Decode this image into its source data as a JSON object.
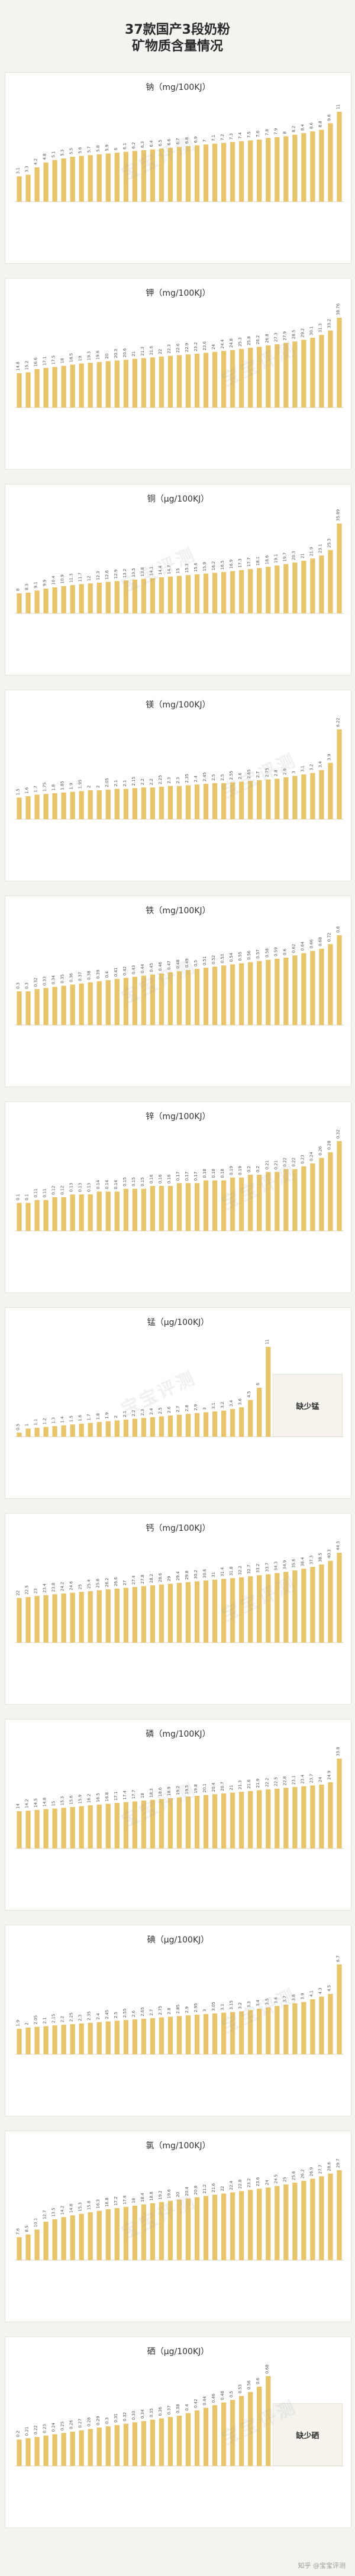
{
  "title_line1": "37款国产3段奶粉",
  "title_line2": "矿物质含量情况",
  "bar_color": "#e8c46a",
  "watermark_text": "宝宝评测",
  "footer_text": "知乎 @宝宝评测",
  "chart_data": [
    {
      "type": "bar",
      "title": "钠（mg/100KJ）",
      "values": [
        3.1,
        3.3,
        4.2,
        4.8,
        5.1,
        5.3,
        5.5,
        5.6,
        5.7,
        5.8,
        5.9,
        6,
        6.1,
        6.2,
        6.3,
        6.4,
        6.5,
        6.6,
        6.7,
        6.8,
        6.9,
        7,
        7.1,
        7.2,
        7.3,
        7.4,
        7.5,
        7.6,
        7.8,
        7.9,
        8,
        8.2,
        8.4,
        8.6,
        8.8,
        9.6,
        11
      ],
      "missing_label": ""
    },
    {
      "type": "bar",
      "title": "钾（mg/100KJ）",
      "values": [
        14.8,
        15.2,
        16.6,
        17.1,
        17.5,
        18,
        18.5,
        19,
        19.3,
        19.6,
        20,
        20.3,
        20.6,
        21,
        21.3,
        21.6,
        22,
        22.3,
        22.6,
        22.9,
        23.2,
        23.6,
        24,
        24.4,
        24.8,
        25.3,
        25.8,
        26.2,
        26.8,
        27.3,
        27.9,
        28.5,
        29.2,
        30.1,
        31.3,
        33.2,
        38.76
      ],
      "missing_label": ""
    },
    {
      "type": "bar",
      "title": "铜（µg/100KJ）",
      "values": [
        8,
        8.3,
        9.1,
        9.9,
        10.4,
        10.9,
        11.3,
        11.7,
        12,
        12.3,
        12.6,
        12.9,
        13.2,
        13.5,
        13.8,
        14.1,
        14.4,
        14.7,
        15,
        15.3,
        15.6,
        15.9,
        16.2,
        16.5,
        16.9,
        17.3,
        17.7,
        18.1,
        18.6,
        19.1,
        19.7,
        20.3,
        21,
        21.9,
        23.1,
        25.3,
        35.89
      ],
      "missing_label": ""
    },
    {
      "type": "bar",
      "title": "镁（mg/100KJ）",
      "values": [
        1.5,
        1.6,
        1.7,
        1.75,
        1.8,
        1.85,
        1.9,
        1.95,
        2,
        2,
        2.05,
        2.1,
        2.1,
        2.15,
        2.2,
        2.2,
        2.25,
        2.3,
        2.3,
        2.35,
        2.4,
        2.45,
        2.5,
        2.5,
        2.55,
        2.6,
        2.65,
        2.7,
        2.75,
        2.8,
        2.9,
        3,
        3.1,
        3.2,
        3.4,
        3.9,
        6.22
      ],
      "missing_label": ""
    },
    {
      "type": "bar",
      "title": "铁（mg/100KJ）",
      "values": [
        0.3,
        0.3,
        0.32,
        0.33,
        0.34,
        0.35,
        0.36,
        0.37,
        0.38,
        0.39,
        0.4,
        0.41,
        0.42,
        0.43,
        0.44,
        0.45,
        0.46,
        0.47,
        0.48,
        0.49,
        0.5,
        0.51,
        0.52,
        0.53,
        0.54,
        0.55,
        0.56,
        0.57,
        0.58,
        0.59,
        0.6,
        0.62,
        0.64,
        0.66,
        0.68,
        0.72,
        0.8
      ],
      "missing_label": ""
    },
    {
      "type": "bar",
      "title": "锌（mg/100KJ）",
      "values": [
        0.1,
        0.1,
        0.11,
        0.11,
        0.12,
        0.12,
        0.13,
        0.13,
        0.13,
        0.14,
        0.14,
        0.14,
        0.15,
        0.15,
        0.15,
        0.16,
        0.16,
        0.16,
        0.17,
        0.17,
        0.17,
        0.18,
        0.18,
        0.18,
        0.19,
        0.19,
        0.2,
        0.2,
        0.21,
        0.21,
        0.22,
        0.22,
        0.23,
        0.24,
        0.26,
        0.28,
        0.32
      ],
      "missing_label": ""
    },
    {
      "type": "bar",
      "title": "锰（µg/100KJ）",
      "values": [
        0.5,
        1,
        1.1,
        1.2,
        1.3,
        1.4,
        1.5,
        1.6,
        1.7,
        1.8,
        1.9,
        2,
        2.1,
        2.2,
        2.3,
        2.4,
        2.5,
        2.6,
        2.7,
        2.8,
        2.9,
        3,
        3.1,
        3.2,
        3.4,
        3.6,
        4.5,
        6,
        11,
        0,
        0,
        0,
        0,
        0,
        0,
        0,
        0
      ],
      "missing_label": "缺少锰"
    },
    {
      "type": "bar",
      "title": "钙（mg/100KJ）",
      "values": [
        22,
        22.5,
        23,
        23.4,
        23.8,
        24.2,
        24.6,
        25,
        25.4,
        25.8,
        26.2,
        26.6,
        27,
        27.4,
        27.8,
        28.2,
        28.6,
        29,
        29.4,
        29.8,
        30.2,
        30.6,
        31,
        31.4,
        31.8,
        32.2,
        32.7,
        33.2,
        33.7,
        34.3,
        34.9,
        35.6,
        36.4,
        37.3,
        38.5,
        40.3,
        44.3
      ],
      "missing_label": ""
    },
    {
      "type": "bar",
      "title": "磷（mg/100KJ）",
      "values": [
        14,
        14.2,
        14.5,
        14.8,
        15,
        15.3,
        15.6,
        15.9,
        16.2,
        16.5,
        16.8,
        17.1,
        17.4,
        17.7,
        18,
        18.3,
        18.6,
        18.9,
        19.2,
        19.5,
        19.8,
        20.1,
        20.4,
        20.7,
        21,
        21.3,
        21.6,
        21.9,
        22.2,
        22.5,
        22.8,
        23.1,
        23.4,
        23.7,
        24,
        24.9,
        33.8
      ],
      "missing_label": ""
    },
    {
      "type": "bar",
      "title": "碘（µg/100KJ）",
      "values": [
        1.9,
        2,
        2.05,
        2.1,
        2.15,
        2.2,
        2.25,
        2.3,
        2.35,
        2.4,
        2.45,
        2.5,
        2.55,
        2.6,
        2.65,
        2.7,
        2.75,
        2.8,
        2.85,
        2.9,
        2.95,
        3,
        3.05,
        3.1,
        3.15,
        3.2,
        3.3,
        3.4,
        3.5,
        3.6,
        3.7,
        3.8,
        3.9,
        4.1,
        4.3,
        4.5,
        6.7
      ],
      "missing_label": ""
    },
    {
      "type": "bar",
      "title": "氯（mg/100KJ）",
      "values": [
        7.6,
        8.5,
        10.1,
        12.7,
        13.5,
        14.2,
        14.8,
        15.3,
        15.8,
        16.3,
        16.8,
        17.2,
        17.6,
        18,
        18.4,
        18.8,
        19.2,
        19.6,
        20,
        20.4,
        20.8,
        21.2,
        21.6,
        22,
        22.4,
        22.8,
        23.2,
        23.6,
        24,
        24.5,
        25,
        25.6,
        26.2,
        26.9,
        27.7,
        28.6,
        29.7
      ],
      "missing_label": ""
    },
    {
      "type": "bar",
      "title": "硒（µg/100KJ）",
      "values": [
        0.2,
        0.21,
        0.22,
        0.23,
        0.24,
        0.25,
        0.26,
        0.27,
        0.28,
        0.29,
        0.3,
        0.31,
        0.32,
        0.33,
        0.34,
        0.35,
        0.36,
        0.37,
        0.38,
        0.4,
        0.42,
        0.44,
        0.46,
        0.48,
        0.5,
        0.53,
        0.56,
        0.6,
        0.68,
        0,
        0,
        0,
        0,
        0,
        0,
        0,
        0
      ],
      "missing_label": "缺少硒"
    }
  ]
}
